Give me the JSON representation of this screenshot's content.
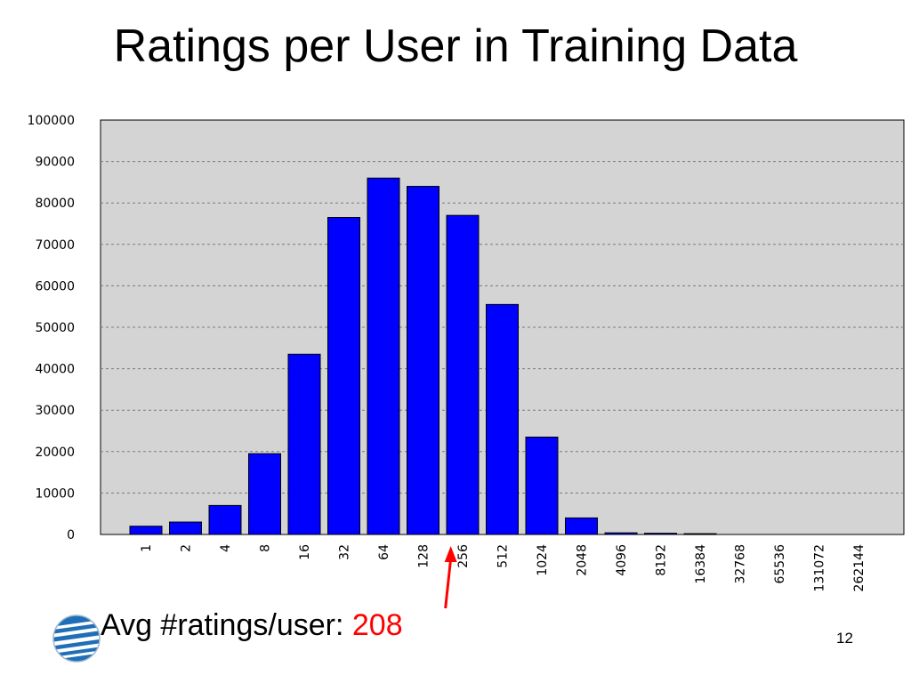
{
  "slide": {
    "title": "Ratings per User in Training Data",
    "caption_label": "Avg #ratings/user:",
    "caption_value": "208",
    "page_number": "12"
  },
  "colors": {
    "bar": "#0000ff",
    "plot_bg": "#d4d4d4",
    "arrow": "#ff0000"
  },
  "icons": {
    "logo": "att-globe-icon"
  },
  "chart_data": {
    "type": "bar",
    "title": "",
    "xlabel": "",
    "ylabel": "",
    "categories": [
      "1",
      "2",
      "4",
      "8",
      "16",
      "32",
      "64",
      "128",
      "256",
      "512",
      "1024",
      "2048",
      "4096",
      "8192",
      "16384",
      "32768",
      "65536",
      "131072",
      "262144"
    ],
    "values": [
      2000,
      3000,
      7000,
      19500,
      43500,
      76500,
      86000,
      84000,
      77000,
      55500,
      23500,
      4000,
      400,
      300,
      200,
      0,
      0,
      0,
      0
    ],
    "ylim": [
      0,
      100000
    ],
    "yticks": [
      "0",
      "10000",
      "20000",
      "30000",
      "40000",
      "50000",
      "60000",
      "70000",
      "80000",
      "90000",
      "100000"
    ],
    "grid": true,
    "annotation": {
      "marker": "arrow",
      "value": 208
    }
  }
}
